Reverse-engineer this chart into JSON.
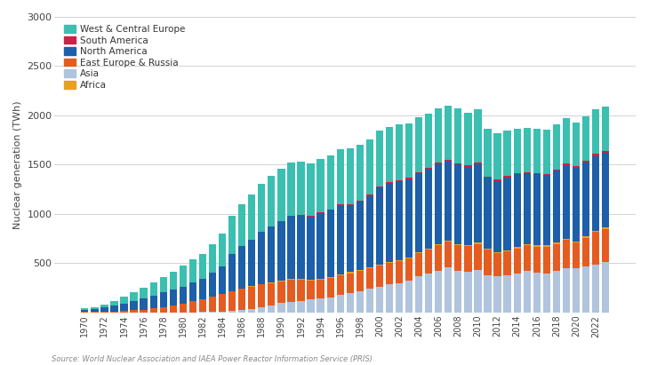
{
  "years": [
    1970,
    1971,
    1972,
    1973,
    1974,
    1975,
    1976,
    1977,
    1978,
    1979,
    1980,
    1981,
    1982,
    1983,
    1984,
    1985,
    1986,
    1987,
    1988,
    1989,
    1990,
    1991,
    1992,
    1993,
    1994,
    1995,
    1996,
    1997,
    1998,
    1999,
    2000,
    2001,
    2002,
    2003,
    2004,
    2005,
    2006,
    2007,
    2008,
    2009,
    2010,
    2011,
    2012,
    2013,
    2014,
    2015,
    2016,
    2017,
    2018,
    2019,
    2020,
    2021,
    2022,
    2023
  ],
  "asia": [
    0,
    0,
    0,
    0,
    0,
    0,
    0,
    0,
    0,
    0,
    0,
    3,
    5,
    8,
    12,
    18,
    26,
    38,
    55,
    75,
    98,
    110,
    120,
    130,
    140,
    155,
    175,
    195,
    215,
    245,
    265,
    285,
    300,
    325,
    365,
    395,
    425,
    455,
    420,
    415,
    430,
    380,
    370,
    380,
    400,
    420,
    405,
    400,
    420,
    450,
    450,
    470,
    490,
    510
  ],
  "east_europe_russia": [
    4,
    6,
    8,
    12,
    18,
    22,
    28,
    40,
    55,
    70,
    90,
    110,
    130,
    155,
    175,
    200,
    215,
    225,
    230,
    225,
    215,
    220,
    215,
    195,
    190,
    195,
    200,
    205,
    205,
    205,
    210,
    215,
    220,
    225,
    235,
    245,
    255,
    265,
    265,
    260,
    265,
    255,
    230,
    240,
    250,
    260,
    265,
    270,
    275,
    285,
    260,
    290,
    325,
    340
  ],
  "north_america": [
    22,
    25,
    42,
    56,
    70,
    90,
    112,
    130,
    148,
    160,
    168,
    190,
    210,
    240,
    285,
    380,
    430,
    470,
    530,
    570,
    610,
    640,
    640,
    640,
    670,
    680,
    700,
    680,
    690,
    720,
    780,
    800,
    800,
    790,
    800,
    805,
    815,
    805,
    805,
    790,
    800,
    720,
    720,
    740,
    740,
    720,
    720,
    710,
    730,
    750,
    745,
    750,
    760,
    760
  ],
  "south_america": [
    0,
    0,
    0,
    0,
    0,
    0,
    0,
    0,
    0,
    0,
    0,
    0,
    0,
    0,
    0,
    0,
    0,
    0,
    0,
    0,
    0,
    1,
    2,
    3,
    4,
    5,
    10,
    10,
    11,
    12,
    12,
    13,
    13,
    13,
    13,
    14,
    14,
    14,
    13,
    14,
    15,
    15,
    15,
    15,
    15,
    15,
    16,
    16,
    17,
    17,
    17,
    19,
    20,
    20
  ],
  "west_central_europe": [
    14,
    20,
    30,
    45,
    70,
    90,
    115,
    135,
    160,
    185,
    215,
    235,
    250,
    290,
    330,
    380,
    430,
    460,
    490,
    510,
    530,
    540,
    540,
    535,
    540,
    550,
    560,
    565,
    565,
    560,
    565,
    560,
    565,
    555,
    555,
    550,
    550,
    545,
    555,
    540,
    545,
    480,
    470,
    460,
    450,
    450,
    450,
    445,
    455,
    455,
    440,
    450,
    455,
    450
  ],
  "africa": [
    0,
    0,
    0,
    0,
    0,
    0,
    0,
    0,
    0,
    0,
    0,
    0,
    0,
    0,
    0,
    0,
    2,
    3,
    4,
    6,
    8,
    10,
    10,
    10,
    10,
    10,
    10,
    12,
    12,
    12,
    12,
    12,
    13,
    12,
    13,
    12,
    12,
    12,
    12,
    12,
    12,
    12,
    12,
    13,
    12,
    12,
    12,
    12,
    12,
    12,
    12,
    13,
    13,
    13
  ],
  "colors": {
    "west_central_europe": "#3BBFB0",
    "south_america": "#CC2244",
    "north_america": "#1D5FA8",
    "east_europe_russia": "#E55C20",
    "asia": "#B0C4DE",
    "africa": "#E8A020"
  },
  "labels": {
    "west_central_europe": "West & Central Europe",
    "south_america": "South America",
    "north_america": "North America",
    "east_europe_russia": "East Europe & Russia",
    "asia": "Asia",
    "africa": "Africa"
  },
  "ylabel": "Nuclear generation (TWh)",
  "ylim": [
    0,
    3000
  ],
  "yticks": [
    0,
    500,
    1000,
    1500,
    2000,
    2500,
    3000
  ],
  "source_text": "Source: World Nuclear Association and IAEA Power Reactor Information Service (PRIS)",
  "background_color": "#FFFFFF",
  "grid_color": "#CCCCCC"
}
